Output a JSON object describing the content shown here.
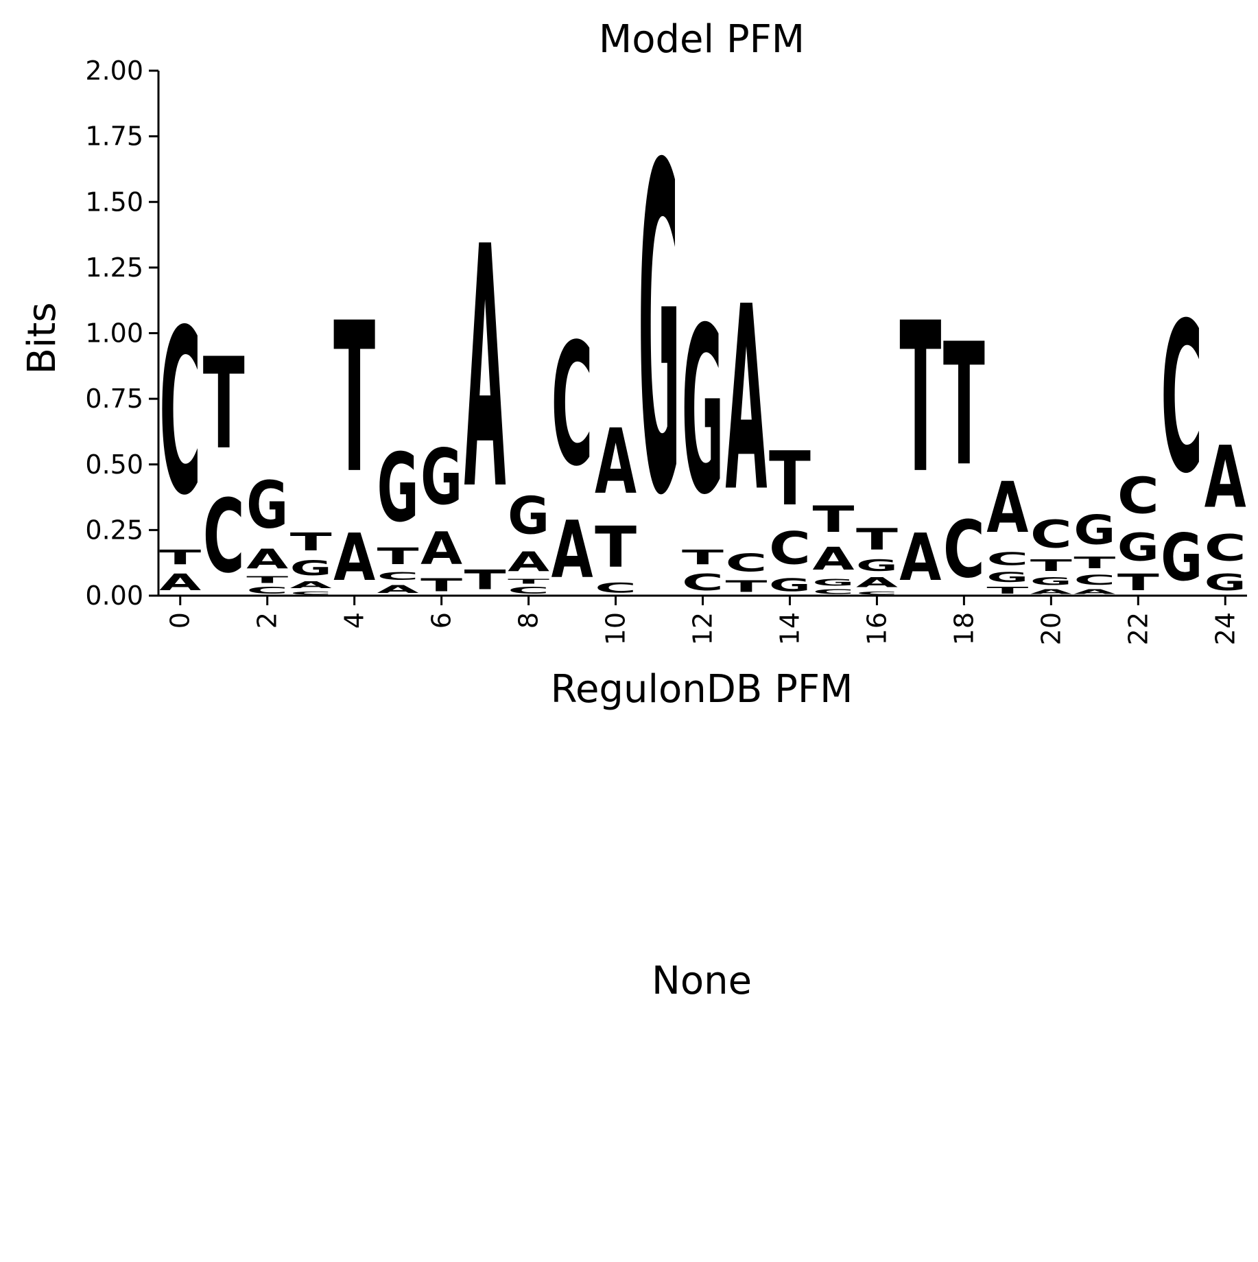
{
  "chart_data": {
    "type": "sequence_logo",
    "title": "Model PFM",
    "xlabel": "RegulonDB PFM",
    "ylabel": "Bits",
    "ylim": [
      0,
      2.0
    ],
    "xlim": [
      -0.5,
      24.5
    ],
    "yticks": [
      "0.00",
      "0.25",
      "0.50",
      "0.75",
      "1.00",
      "1.25",
      "1.50",
      "1.75",
      "2.00"
    ],
    "ytick_values": [
      0,
      0.25,
      0.5,
      0.75,
      1.0,
      1.25,
      1.5,
      1.75,
      2.0
    ],
    "xticks": [
      "0",
      "2",
      "4",
      "6",
      "8",
      "10",
      "12",
      "14",
      "16",
      "18",
      "20",
      "22",
      "24"
    ],
    "xtick_values": [
      0,
      2,
      4,
      6,
      8,
      10,
      12,
      14,
      16,
      18,
      20,
      22,
      24
    ],
    "colors": {
      "A": "#ff0000",
      "C": "#0000ff",
      "G": "#ffa500",
      "T": "#008000"
    },
    "positions": [
      {
        "pos": 0,
        "stack": [
          {
            "base": "A",
            "h": 0.1
          },
          {
            "base": "T",
            "h": 0.09
          },
          {
            "base": "C",
            "h": 1.01
          }
        ]
      },
      {
        "pos": 1,
        "stack": [
          {
            "base": "C",
            "h": 0.45
          },
          {
            "base": "T",
            "h": 0.56
          }
        ]
      },
      {
        "pos": 2,
        "stack": [
          {
            "base": "C",
            "h": 0.04
          },
          {
            "base": "T",
            "h": 0.04
          },
          {
            "base": "A",
            "h": 0.12
          },
          {
            "base": "G",
            "h": 0.29
          }
        ]
      },
      {
        "pos": 3,
        "stack": [
          {
            "base": "C",
            "h": 0.02
          },
          {
            "base": "A",
            "h": 0.04
          },
          {
            "base": "G",
            "h": 0.09
          },
          {
            "base": "T",
            "h": 0.11
          }
        ]
      },
      {
        "pos": 4,
        "stack": [
          {
            "base": "A",
            "h": 0.29
          },
          {
            "base": "T",
            "h": 0.92
          }
        ]
      },
      {
        "pos": 5,
        "stack": [
          {
            "base": "A",
            "h": 0.05
          },
          {
            "base": "C",
            "h": 0.05
          },
          {
            "base": "T",
            "h": 0.1
          },
          {
            "base": "G",
            "h": 0.42
          }
        ]
      },
      {
        "pos": 6,
        "stack": [
          {
            "base": "T",
            "h": 0.08
          },
          {
            "base": "A",
            "h": 0.2
          },
          {
            "base": "G",
            "h": 0.34
          }
        ]
      },
      {
        "pos": 7,
        "stack": [
          {
            "base": "T",
            "h": 0.12
          },
          {
            "base": "A",
            "h": 1.48
          }
        ]
      },
      {
        "pos": 8,
        "stack": [
          {
            "base": "C",
            "h": 0.04
          },
          {
            "base": "T",
            "h": 0.03
          },
          {
            "base": "A",
            "h": 0.12
          },
          {
            "base": "G",
            "h": 0.23
          }
        ]
      },
      {
        "pos": 9,
        "stack": [
          {
            "base": "A",
            "h": 0.35
          },
          {
            "base": "C",
            "h": 0.75
          }
        ]
      },
      {
        "pos": 10,
        "stack": [
          {
            "base": "C",
            "h": 0.06
          },
          {
            "base": "T",
            "h": 0.25
          },
          {
            "base": "A",
            "h": 0.4
          }
        ]
      },
      {
        "pos": 11,
        "stack": [
          {
            "base": "G",
            "h": 2.0
          }
        ]
      },
      {
        "pos": 12,
        "stack": [
          {
            "base": "C",
            "h": 0.1
          },
          {
            "base": "T",
            "h": 0.09
          },
          {
            "base": "G",
            "h": 1.02
          }
        ]
      },
      {
        "pos": 13,
        "stack": [
          {
            "base": "T",
            "h": 0.07
          },
          {
            "base": "C",
            "h": 0.11
          },
          {
            "base": "A",
            "h": 1.13
          }
        ]
      },
      {
        "pos": 14,
        "stack": [
          {
            "base": "G",
            "h": 0.08
          },
          {
            "base": "C",
            "h": 0.2
          },
          {
            "base": "T",
            "h": 0.33
          }
        ]
      },
      {
        "pos": 15,
        "stack": [
          {
            "base": "C",
            "h": 0.03
          },
          {
            "base": "G",
            "h": 0.04
          },
          {
            "base": "A",
            "h": 0.14
          },
          {
            "base": "T",
            "h": 0.16
          }
        ]
      },
      {
        "pos": 16,
        "stack": [
          {
            "base": "C",
            "h": 0.02
          },
          {
            "base": "A",
            "h": 0.06
          },
          {
            "base": "G",
            "h": 0.07
          },
          {
            "base": "T",
            "h": 0.13
          }
        ]
      },
      {
        "pos": 17,
        "stack": [
          {
            "base": "A",
            "h": 0.29
          },
          {
            "base": "T",
            "h": 0.92
          }
        ]
      },
      {
        "pos": 18,
        "stack": [
          {
            "base": "C",
            "h": 0.35
          },
          {
            "base": "T",
            "h": 0.75
          }
        ]
      },
      {
        "pos": 19,
        "stack": [
          {
            "base": "T",
            "h": 0.04
          },
          {
            "base": "G",
            "h": 0.06
          },
          {
            "base": "C",
            "h": 0.08
          },
          {
            "base": "A",
            "h": 0.31
          }
        ]
      },
      {
        "pos": 20,
        "stack": [
          {
            "base": "A",
            "h": 0.03
          },
          {
            "base": "G",
            "h": 0.05
          },
          {
            "base": "T",
            "h": 0.07
          },
          {
            "base": "C",
            "h": 0.17
          }
        ]
      },
      {
        "pos": 21,
        "stack": [
          {
            "base": "A",
            "h": 0.03
          },
          {
            "base": "C",
            "h": 0.06
          },
          {
            "base": "T",
            "h": 0.07
          },
          {
            "base": "G",
            "h": 0.18
          }
        ]
      },
      {
        "pos": 22,
        "stack": [
          {
            "base": "T",
            "h": 0.1
          },
          {
            "base": "G",
            "h": 0.17
          },
          {
            "base": "C",
            "h": 0.22
          }
        ]
      },
      {
        "pos": 23,
        "stack": [
          {
            "base": "G",
            "h": 0.29
          },
          {
            "base": "C",
            "h": 0.92
          }
        ]
      },
      {
        "pos": 24,
        "stack": [
          {
            "base": "G",
            "h": 0.1
          },
          {
            "base": "C",
            "h": 0.16
          },
          {
            "base": "A",
            "h": 0.38
          }
        ]
      }
    ]
  },
  "lower_panel": {
    "text": "None"
  }
}
